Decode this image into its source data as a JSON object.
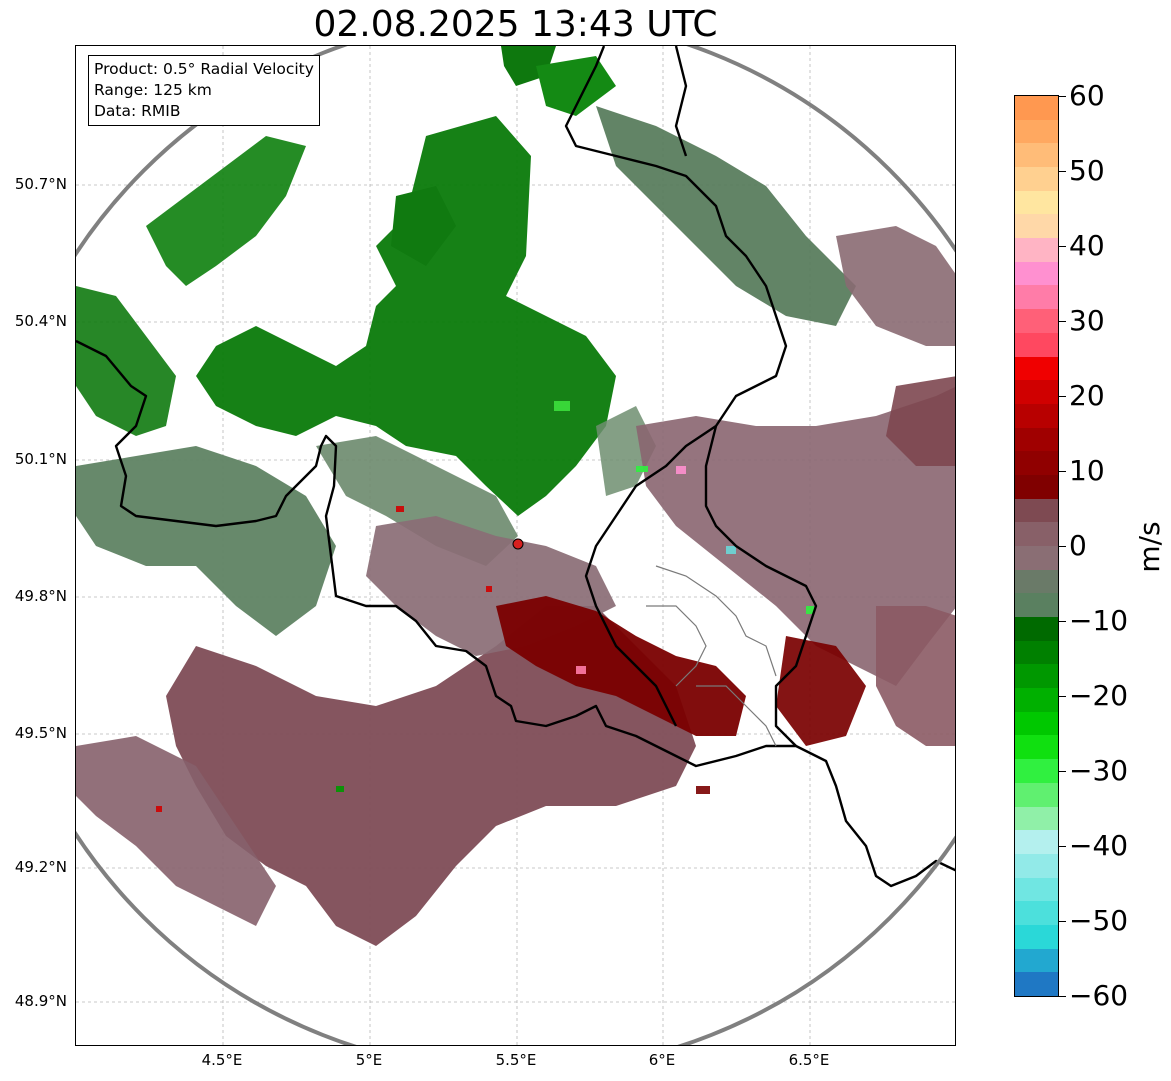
{
  "title": "02.08.2025 13:43 UTC",
  "info_box": {
    "product": "Product: 0.5° Radial Velocity",
    "range": "Range: 125 km",
    "data": "Data: RMIB"
  },
  "latitude_labels": [
    "50.7°N",
    "50.4°N",
    "50.1°N",
    "49.8°N",
    "49.5°N",
    "49.2°N",
    "48.9°N"
  ],
  "longitude_labels": [
    "4.5°E",
    "5°E",
    "5.5°E",
    "6°E",
    "6.5°E"
  ],
  "colorbar": {
    "unit": "m/s",
    "min": -60,
    "max": 60,
    "tick_labels": [
      "60",
      "50",
      "40",
      "30",
      "20",
      "10",
      "0",
      "−10",
      "−20",
      "−30",
      "−40",
      "−50",
      "−60"
    ],
    "colors": [
      "#1f78c4",
      "#22a8d0",
      "#2ad8d8",
      "#4ce0dc",
      "#70e6e2",
      "#92eae8",
      "#b4f0ee",
      "#90f0a8",
      "#60f070",
      "#30f040",
      "#10e010",
      "#00c800",
      "#00b000",
      "#009800",
      "#008000",
      "#006a00",
      "#5a8060",
      "#6a7a68",
      "#8a6e74",
      "#886068",
      "#7e4a52",
      "#800000",
      "#900000",
      "#a00000",
      "#b80000",
      "#d00000",
      "#f00000",
      "#ff4860",
      "#ff6078",
      "#ff7ca8",
      "#ff90d0",
      "#ffb4c4",
      "#ffd8a8",
      "#ffe6a0",
      "#ffd090",
      "#ffbc78",
      "#ffa860",
      "#ff9850"
    ]
  }
}
